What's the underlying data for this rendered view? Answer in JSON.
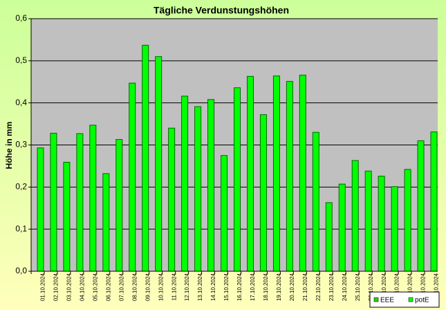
{
  "chart_data": {
    "type": "bar",
    "title": "Tägliche Verdunstungshöhen",
    "y_label": "Höhe in mm",
    "categories": [
      "01.10.2024",
      "02.10.2024",
      "03.10.2024",
      "04.10.2024",
      "05.10.2024",
      "06.10.2024",
      "07.10.2024",
      "08.10.2024",
      "09.10.2024",
      "10.10.2024",
      "11.10.2024",
      "12.10.2024",
      "13.10.2024",
      "14.10.2024",
      "15.10.2024",
      "16.10.2024",
      "17.10.2024",
      "18.10.2024",
      "19.10.2024",
      "20.10.2024",
      "21.10.2024",
      "22.10.2024",
      "23.10.2024",
      "24.10.2024",
      "25.10.2024",
      "26.10.2024",
      "27.10.2024",
      "28.10.2024",
      "29.10.2024",
      "30.10.2024",
      "31.10.2024"
    ],
    "series": [
      {
        "name": "EEE",
        "color": "#33cc00",
        "values": [
          null,
          null,
          null,
          null,
          null,
          null,
          null,
          null,
          null,
          null,
          null,
          null,
          null,
          null,
          null,
          null,
          null,
          null,
          null,
          null,
          null,
          null,
          null,
          null,
          null,
          null,
          null,
          null,
          null,
          null,
          null
        ]
      },
      {
        "name": "potE",
        "color": "#00ff00",
        "values": [
          0.293,
          0.328,
          0.259,
          0.327,
          0.347,
          0.232,
          0.313,
          0.447,
          0.537,
          0.51,
          0.34,
          0.416,
          0.391,
          0.408,
          0.275,
          0.436,
          0.463,
          0.372,
          0.464,
          0.451,
          0.466,
          0.33,
          0.163,
          0.207,
          0.263,
          0.238,
          0.226,
          0.201,
          0.242,
          0.31,
          0.331
        ]
      }
    ],
    "ylim": [
      0,
      0.6
    ],
    "yticks": [
      {
        "value": 0,
        "label": "0,0"
      },
      {
        "value": 0.1,
        "label": "0,1"
      },
      {
        "value": 0.2,
        "label": "0,2"
      },
      {
        "value": 0.3,
        "label": "0,3"
      },
      {
        "value": 0.4,
        "label": "0,4"
      },
      {
        "value": 0.5,
        "label": "0,5"
      },
      {
        "value": 0.6,
        "label": "0,6"
      }
    ],
    "grid": true,
    "legend": "bottom-right"
  }
}
